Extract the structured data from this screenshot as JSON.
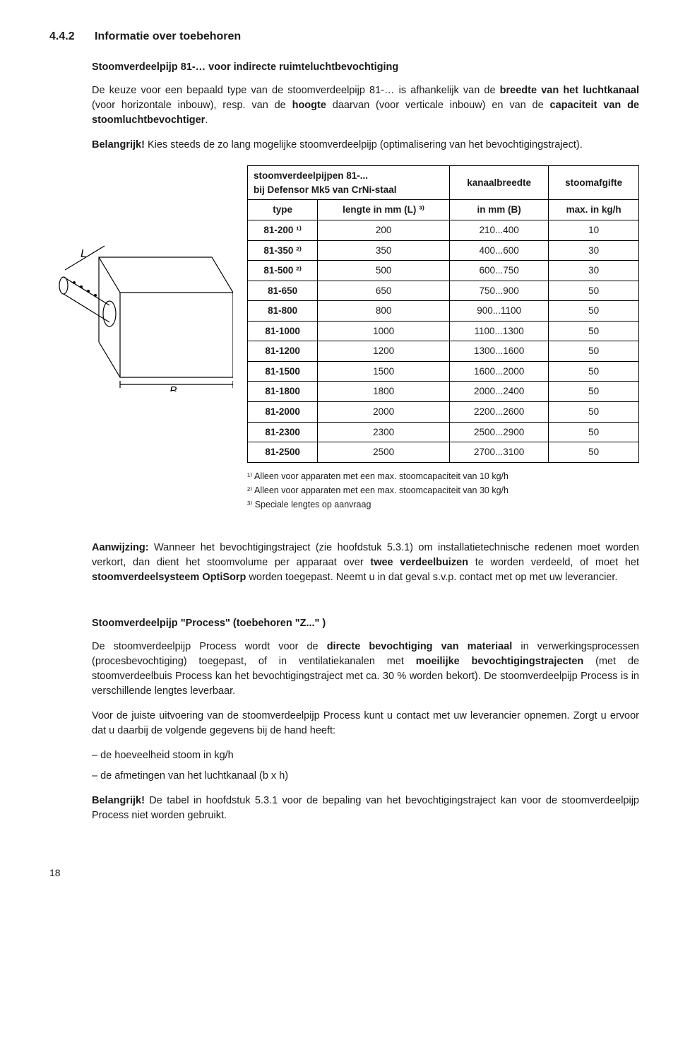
{
  "section": {
    "num": "4.4.2",
    "title": "Informatie over toebehoren"
  },
  "sub1": {
    "heading": "Stoomverdeelpijp 81-… voor indirecte ruimteluchtbevochtiging",
    "p1a": "De keuze voor een bepaald type van de stoomverdeelpijp 81-… is afhankelijk van de ",
    "p1b": "breedte van het luchtkanaal",
    "p1c": " (voor horizontale inbouw), resp. van de ",
    "p1d": "hoogte",
    "p1e": " daarvan (voor verticale inbouw) en van de ",
    "p1f": "capaciteit van de stoomluchtbevochtiger",
    "p1g": ".",
    "p2a": "Belangrijk!",
    "p2b": " Kies steeds de zo lang mogelijke stoomverdeelpijp (optimalisering van het bevochtigings­traject)."
  },
  "table": {
    "h1a": "stoomverdeelpijpen 81-...",
    "h1b": "bij Defensor Mk5 van CrNi-staal",
    "h2": "kanaalbreedte",
    "h3": "stoomafgifte",
    "sh1": "type",
    "sh2": "lengte in mm (L) ³⁾",
    "sh3": "in mm (B)",
    "sh4": "max. in kg/h",
    "rows": [
      {
        "t": "81-200 ¹⁾",
        "l": "200",
        "b": "210...400",
        "m": "10"
      },
      {
        "t": "81-350 ²⁾",
        "l": "350",
        "b": "400...600",
        "m": "30"
      },
      {
        "t": "81-500 ²⁾",
        "l": "500",
        "b": "600...750",
        "m": "30"
      },
      {
        "t": "81-650",
        "l": "650",
        "b": "750...900",
        "m": "50"
      },
      {
        "t": "81-800",
        "l": "800",
        "b": "900...1100",
        "m": "50"
      },
      {
        "t": "81-1000",
        "l": "1000",
        "b": "1100...1300",
        "m": "50"
      },
      {
        "t": "81-1200",
        "l": "1200",
        "b": "1300...1600",
        "m": "50"
      },
      {
        "t": "81-1500",
        "l": "1500",
        "b": "1600...2000",
        "m": "50"
      },
      {
        "t": "81-1800",
        "l": "1800",
        "b": "2000...2400",
        "m": "50"
      },
      {
        "t": "81-2000",
        "l": "2000",
        "b": "2200...2600",
        "m": "50"
      },
      {
        "t": "81-2300",
        "l": "2300",
        "b": "2500...2900",
        "m": "50"
      },
      {
        "t": "81-2500",
        "l": "2500",
        "b": "2700...3100",
        "m": "50"
      }
    ]
  },
  "fn1": "¹⁾ Alleen voor apparaten met een max. stoomcapaciteit van 10 kg/h",
  "fn2": "²⁾ Alleen voor apparaten met een max. stoomcapaciteit van 30 kg/h",
  "fn3": "³⁾ Speciale lengtes op aanvraag",
  "note": {
    "a": "Aanwijzing:",
    "b": " Wanneer het bevochtigingstraject (zie hoofdstuk 5.3.1) om installatietechnische redenen moet worden verkort, dan dient het stoomvolume per apparaat over ",
    "c": "twee verdeelbuizen",
    "d": " te worden verdeeld, of moet het ",
    "e": "stoomverdeelsysteem OptiSorp",
    "f": " worden toegepast. Neemt u in dat geval s.v.p. contact met op met uw leverancier."
  },
  "sub2": {
    "heading": "Stoomverdeelpijp \"Process\" (toebehoren \"Z...\" )",
    "p1a": "De stoomverdeelpijp Process wordt voor de ",
    "p1b": "directe bevochtiging van materiaal",
    "p1c": " in verwerkingspro­cessen (procesbevochtiging) toegepast, of in ventilatiekanalen met ",
    "p1d": "moeilijke bevochtigingstrajecten",
    "p1e": " (met de stoomverdeelbuis Process kan het bevochtigingstraject met ca. 30 % worden bekort). De stoomverdeelpijp Process is in verschillende lengtes leverbaar.",
    "p2": "Voor de juiste uitvoering van de stoomverdeelpijp Process kunt u contact met uw leverancier opnemen. Zorgt u ervoor dat u daarbij de volgende gegevens bij de hand heeft:",
    "li1": "de hoeveelheid stoom in kg/h",
    "li2": "de afmetingen van het luchtkanaal (b x h)",
    "p3a": "Belangrijk!",
    "p3b": " De tabel in hoofdstuk 5.3.1 voor de bepaling van het bevochtigingstraject kan voor de stoomverdeelpijp Process niet worden gebruikt."
  },
  "pagenum": "18",
  "diagram": {
    "L": "L",
    "B": "B"
  }
}
